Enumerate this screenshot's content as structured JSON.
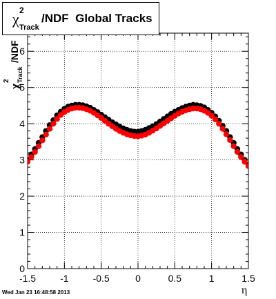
{
  "chart_data": {
    "type": "scatter",
    "title": {
      "chi": "χ",
      "sup": "2",
      "sub": "Track",
      "main": "/NDF  Global Tracks"
    },
    "ylabel": {
      "chi": "χ",
      "sup": "2",
      "sub": "Track",
      "main": "/NDF"
    },
    "xlabel": "η",
    "xlim": [
      -1.5,
      1.5
    ],
    "ylim": [
      0,
      6.5
    ],
    "xticks": [
      -1.5,
      -1,
      -0.5,
      0,
      0.5,
      1,
      1.5
    ],
    "xtick_labels": [
      "-1.5",
      "-1",
      "-0.5",
      "0",
      "0.5",
      "1",
      "1.5"
    ],
    "yticks": [
      0,
      1,
      2,
      3,
      4,
      5,
      6
    ],
    "ytick_labels": [
      "0",
      "1",
      "2",
      "3",
      "4",
      "5",
      "6"
    ],
    "grid": true,
    "series": [
      {
        "color": "#000000",
        "marker": "circle",
        "x": [
          -1.5,
          -1.45,
          -1.4,
          -1.35,
          -1.3,
          -1.25,
          -1.2,
          -1.15,
          -1.1,
          -1.05,
          -1.0,
          -0.95,
          -0.9,
          -0.85,
          -0.8,
          -0.75,
          -0.7,
          -0.65,
          -0.6,
          -0.55,
          -0.5,
          -0.45,
          -0.4,
          -0.35,
          -0.3,
          -0.25,
          -0.2,
          -0.15,
          -0.1,
          -0.05,
          0.0,
          0.05,
          0.1,
          0.15,
          0.2,
          0.25,
          0.3,
          0.35,
          0.4,
          0.45,
          0.5,
          0.55,
          0.6,
          0.65,
          0.7,
          0.75,
          0.8,
          0.85,
          0.9,
          0.95,
          1.0,
          1.05,
          1.1,
          1.15,
          1.2,
          1.25,
          1.3,
          1.35,
          1.4,
          1.45,
          1.5
        ],
        "y": [
          3.0,
          3.15,
          3.3,
          3.47,
          3.63,
          3.8,
          3.96,
          4.1,
          4.23,
          4.33,
          4.41,
          4.47,
          4.5,
          4.52,
          4.52,
          4.51,
          4.48,
          4.44,
          4.38,
          4.32,
          4.25,
          4.18,
          4.11,
          4.04,
          3.98,
          3.92,
          3.87,
          3.83,
          3.8,
          3.78,
          3.78,
          3.8,
          3.83,
          3.88,
          3.93,
          3.99,
          4.06,
          4.13,
          4.2,
          4.27,
          4.33,
          4.38,
          4.43,
          4.47,
          4.5,
          4.52,
          4.51,
          4.49,
          4.45,
          4.38,
          4.3,
          4.2,
          4.08,
          3.94,
          3.8,
          3.63,
          3.47,
          3.3,
          3.15,
          3.0,
          2.86
        ]
      },
      {
        "color": "#ff0000",
        "marker": "circle",
        "x": [
          -1.5,
          -1.45,
          -1.4,
          -1.35,
          -1.3,
          -1.25,
          -1.2,
          -1.15,
          -1.1,
          -1.05,
          -1.0,
          -0.95,
          -0.9,
          -0.85,
          -0.8,
          -0.75,
          -0.7,
          -0.65,
          -0.6,
          -0.55,
          -0.5,
          -0.45,
          -0.4,
          -0.35,
          -0.3,
          -0.25,
          -0.2,
          -0.15,
          -0.1,
          -0.05,
          0.0,
          0.05,
          0.1,
          0.15,
          0.2,
          0.25,
          0.3,
          0.35,
          0.4,
          0.45,
          0.5,
          0.55,
          0.6,
          0.65,
          0.7,
          0.75,
          0.8,
          0.85,
          0.9,
          0.95,
          1.0,
          1.05,
          1.1,
          1.15,
          1.2,
          1.25,
          1.3,
          1.35,
          1.4,
          1.45,
          1.5
        ],
        "y": [
          2.95,
          3.08,
          3.22,
          3.38,
          3.54,
          3.7,
          3.86,
          4.0,
          4.13,
          4.24,
          4.32,
          4.38,
          4.42,
          4.44,
          4.44,
          4.43,
          4.4,
          4.36,
          4.3,
          4.23,
          4.16,
          4.08,
          4.0,
          3.93,
          3.86,
          3.8,
          3.75,
          3.71,
          3.68,
          3.66,
          3.65,
          3.67,
          3.7,
          3.75,
          3.81,
          3.87,
          3.94,
          4.01,
          4.08,
          4.15,
          4.22,
          4.28,
          4.33,
          4.37,
          4.4,
          4.42,
          4.42,
          4.4,
          4.36,
          4.3,
          4.22,
          4.12,
          4.0,
          3.86,
          3.71,
          3.55,
          3.38,
          3.22,
          3.08,
          2.95,
          2.83
        ]
      }
    ]
  },
  "footer": "Wed Jan 23 16:48:58 2013"
}
